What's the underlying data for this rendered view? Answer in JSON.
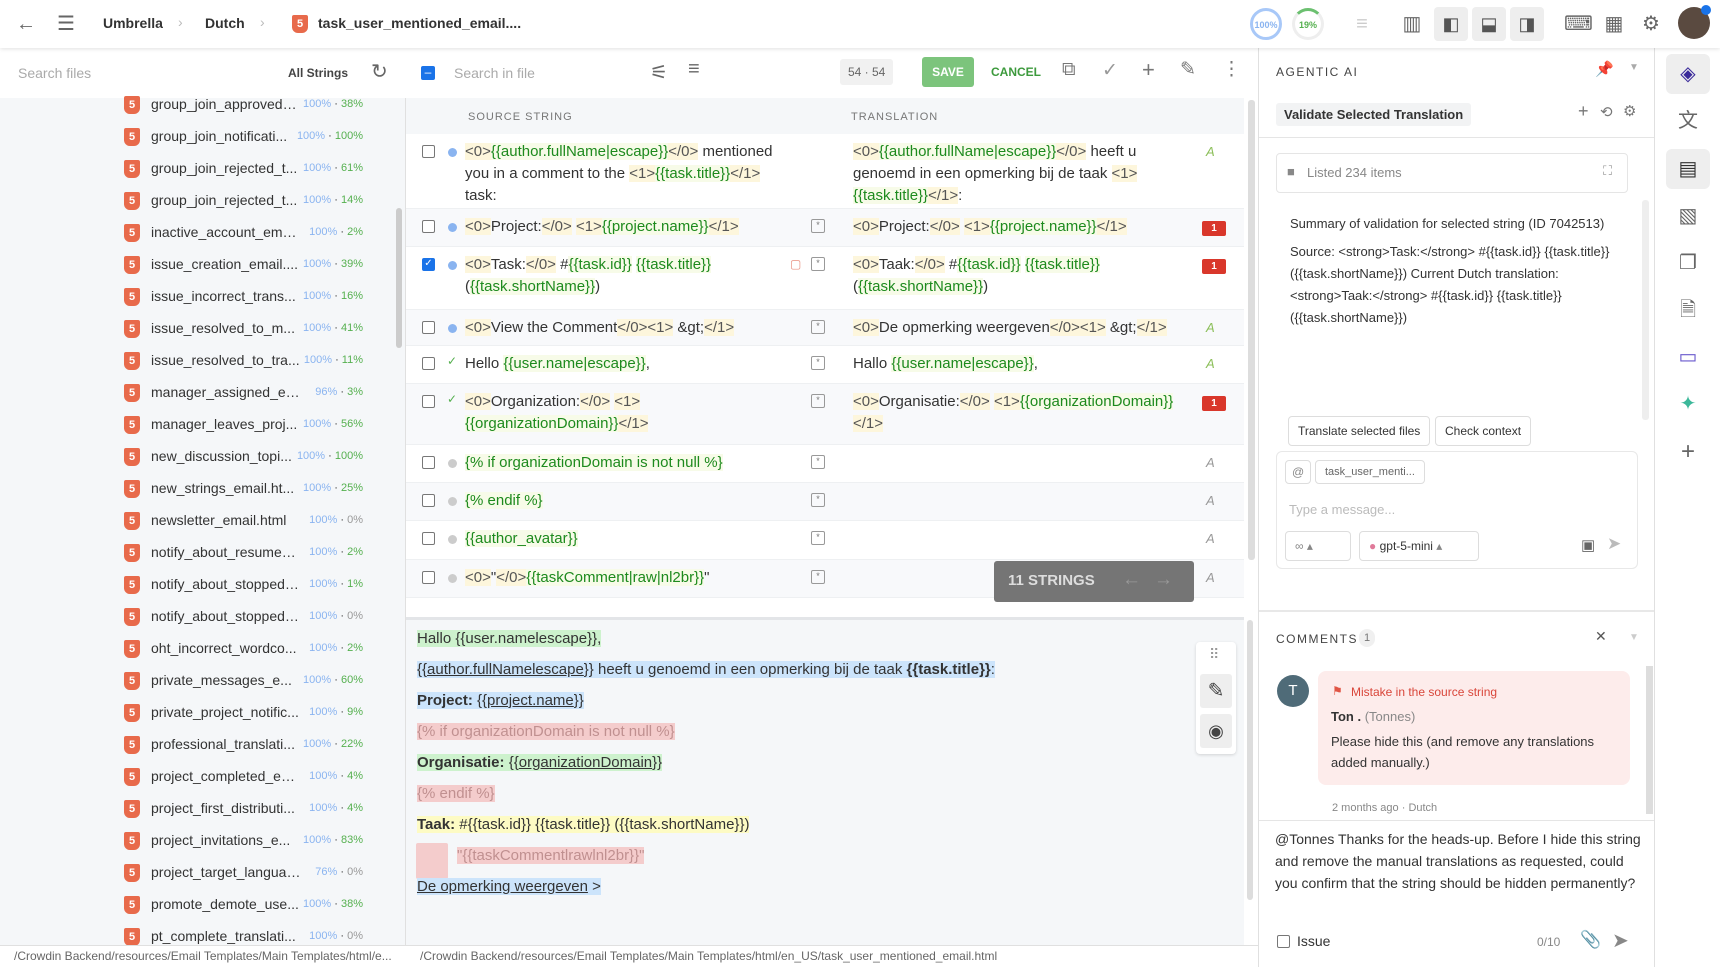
{
  "topbar": {
    "breadcrumbs": [
      "Umbrella",
      "Dutch"
    ],
    "file_title": "task_user_mentioned_email....",
    "progress_translated": "100%",
    "progress_approved": "19%",
    "accent": "#1a73e8"
  },
  "left": {
    "search_placeholder": "Search files",
    "filter": "All Strings",
    "files": [
      {
        "name": "group_join_approved_...",
        "t": "100%",
        "a": "38%"
      },
      {
        "name": "group_join_notificati...",
        "t": "100%",
        "a": "100%"
      },
      {
        "name": "group_join_rejected_t...",
        "t": "100%",
        "a": "61%"
      },
      {
        "name": "group_join_rejected_t...",
        "t": "100%",
        "a": "14%"
      },
      {
        "name": "inactive_account_ema...",
        "t": "100%",
        "a": "2%"
      },
      {
        "name": "issue_creation_email....",
        "t": "100%",
        "a": "39%"
      },
      {
        "name": "issue_incorrect_trans...",
        "t": "100%",
        "a": "16%"
      },
      {
        "name": "issue_resolved_to_m...",
        "t": "100%",
        "a": "41%"
      },
      {
        "name": "issue_resolved_to_tra...",
        "t": "100%",
        "a": "11%"
      },
      {
        "name": "manager_assigned_em...",
        "t": "96%",
        "a": "3%"
      },
      {
        "name": "manager_leaves_proj...",
        "t": "100%",
        "a": "56%"
      },
      {
        "name": "new_discussion_topi...",
        "t": "100%",
        "a": "100%"
      },
      {
        "name": "new_strings_email.ht...",
        "t": "100%",
        "a": "25%"
      },
      {
        "name": "newsletter_email.html",
        "t": "100%",
        "a": "0%"
      },
      {
        "name": "notify_about_resumed...",
        "t": "100%",
        "a": "2%"
      },
      {
        "name": "notify_about_stopped_...",
        "t": "100%",
        "a": "1%"
      },
      {
        "name": "notify_about_stopped_...",
        "t": "100%",
        "a": "0%"
      },
      {
        "name": "oht_incorrect_wordco...",
        "t": "100%",
        "a": "2%"
      },
      {
        "name": "private_messages_e...",
        "t": "100%",
        "a": "60%"
      },
      {
        "name": "private_project_notific...",
        "t": "100%",
        "a": "9%"
      },
      {
        "name": "professional_translati...",
        "t": "100%",
        "a": "22%"
      },
      {
        "name": "project_completed_em...",
        "t": "100%",
        "a": "4%"
      },
      {
        "name": "project_first_distributi...",
        "t": "100%",
        "a": "4%"
      },
      {
        "name": "project_invitations_e...",
        "t": "100%",
        "a": "83%"
      },
      {
        "name": "project_target_languag...",
        "t": "76%",
        "a": "0%"
      },
      {
        "name": "promote_demote_use...",
        "t": "100%",
        "a": "38%"
      },
      {
        "name": "pt_complete_translati...",
        "t": "100%",
        "a": "0%"
      }
    ],
    "path": "/Crowdin Backend/resources/Email Templates/Main Templates/html/e..."
  },
  "editor": {
    "search_placeholder": "Search in file",
    "counter": "54 · 54",
    "save": "SAVE",
    "cancel": "CANCEL",
    "col_source": "SOURCE STRING",
    "col_translation": "TRANSLATION",
    "rows": [
      {
        "checked": false,
        "status": "blue",
        "source": "<0>{{author.fullName|escape}}</0> mentioned you in a comment to the <1>{{task.title}}</1> task:",
        "translation": "<0>{{author.fullName|escape}}</0> heeft u genoemd in een opmerking bij de taak <1>{{task.title}}</1>:",
        "marker": "spellcheck",
        "context": false,
        "comment": false
      },
      {
        "checked": false,
        "status": "blue",
        "source": "<0>Project:</0> <1>{{project.name}}</1>",
        "translation": "<0>Project:</0> <1>{{project.name}}</1>",
        "marker": "issue",
        "issues": "1",
        "context": true
      },
      {
        "checked": true,
        "status": "blue",
        "source": "<0>Task:</0> #{{task.id}} {{task.title}} ({{task.shortName}})",
        "translation": "<0>Taak:</0> #{{task.id}} {{task.title}} ({{task.shortName}})",
        "marker": "issue",
        "issues": "1",
        "context": true,
        "comment": true
      },
      {
        "checked": false,
        "status": "blue",
        "source": "<0>View the Comment</0><1> &gt;</1>",
        "translation": "<0>De opmerking weergeven</0><1> &gt;</1>",
        "marker": "spellcheck",
        "context": true
      },
      {
        "checked": false,
        "status": "approved",
        "source": "Hello {{user.name|escape}},",
        "translation": "Hallo {{user.name|escape}},",
        "marker": "spellcheck",
        "context": true
      },
      {
        "checked": false,
        "status": "approved",
        "source": "<0>Organization:</0> <1>{{organizationDomain}}</1>",
        "translation": "<0>Organisatie:</0> <1>{{organizationDomain}}</1>",
        "marker": "issue",
        "issues": "1",
        "context": true
      },
      {
        "checked": false,
        "status": "grey",
        "source": "{% if organizationDomain is not null %}",
        "translation": "",
        "marker": "spellcheck",
        "context": true
      },
      {
        "checked": false,
        "status": "grey",
        "source": "{% endif %}",
        "translation": "",
        "marker": "spellcheck",
        "context": true
      },
      {
        "checked": false,
        "status": "grey",
        "source": "{{author_avatar}}",
        "translation": "",
        "marker": "spellcheck",
        "context": true
      },
      {
        "checked": false,
        "status": "grey",
        "source": "<0>\"</0>{{taskComment|raw|nl2br}}\"",
        "translation": "",
        "marker": "spellcheck",
        "context": true
      }
    ],
    "strings_count": "11 STRINGS",
    "preview": [
      {
        "style": "green",
        "segs": [
          {
            "t": "Hallo {{user.namelescape}},"
          }
        ]
      },
      {
        "style": "blue",
        "segs": [
          {
            "t": "{{"
          },
          {
            "t": "author.fullNamelescape",
            "u": true
          },
          {
            "t": "}} heeft u genoemd in een opmerking bij de taak "
          },
          {
            "t": "{{task.title}}",
            "b": true
          },
          {
            "t": ":"
          }
        ]
      },
      {
        "style": "blue",
        "segs": [
          {
            "t": "Project: ",
            "b": true
          },
          {
            "t": "{{"
          },
          {
            "t": "project.name",
            "u": true
          },
          {
            "t": "}}"
          }
        ]
      },
      {
        "style": "red",
        "segs": [
          {
            "t": "{% if organizationDomain is not null %}"
          }
        ]
      },
      {
        "style": "green",
        "segs": [
          {
            "t": "Organisatie: ",
            "b": true
          },
          {
            "t": "{{"
          },
          {
            "t": "organizationDomain",
            "u": true
          },
          {
            "t": "}}"
          }
        ]
      },
      {
        "style": "red",
        "segs": [
          {
            "t": "{% endif %}"
          }
        ]
      },
      {
        "style": "yellow",
        "segs": [
          {
            "t": "Taak: ",
            "b": true
          },
          {
            "t": "#{{task.id}} {{task.title}} ({{task.shortName}})"
          }
        ]
      },
      {
        "style": "red",
        "segs": [
          {
            "t": "\"{{taskCommentlrawlnl2br}}\""
          }
        ],
        "image": true
      },
      {
        "style": "blue",
        "segs": [
          {
            "t": "De opmerking weergeven",
            "u": true
          },
          {
            "t": " >"
          }
        ]
      }
    ],
    "path": "/Crowdin Backend/resources/Email Templates/Main Templates/html/en_US/task_user_mentioned_email.html"
  },
  "ai": {
    "title": "AGENTIC AI",
    "session": "Validate Selected Translation",
    "listed": "Listed 234 items",
    "summary_1": "Summary of validation for selected string (ID 7042513)",
    "summary_2": "Source: <strong>Task:</strong> #{{task.id}} {{task.title}} ({{task.shortName}}) Current Dutch translation: <strong>Taak:</strong> #{{task.id}} {{task.title}} ({{task.shortName}})",
    "actions": [
      "Translate selected files",
      "Check context"
    ],
    "mention": "@",
    "attached_file": "task_user_menti...",
    "message_placeholder": "Type a message...",
    "model": "gpt-5-mini"
  },
  "comments": {
    "title": "COMMENTS",
    "count": "1",
    "items": [
      {
        "avatar": "T",
        "issue_type": "Mistake in the source string",
        "author": "Ton .",
        "username": "(Tonnes)",
        "text": "Please hide this (and remove any translations added manually.)",
        "time": "2 months ago",
        "language": "Dutch"
      }
    ],
    "draft": "@Tonnes Thanks for the heads-up. Before I hide this string and remove the manual translations as requested, could you confirm that the string should be hidden permanently?",
    "issue_label": "Issue",
    "counter": "0/10"
  }
}
